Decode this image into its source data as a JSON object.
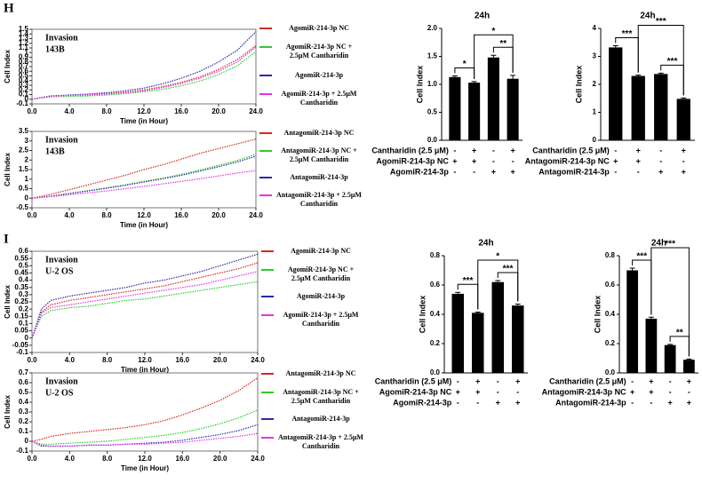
{
  "panel_labels": [
    "H",
    "I"
  ],
  "chart_data": [
    {
      "type": "line",
      "annotations": [
        "Invasion",
        "143B"
      ],
      "x_label": "Time (in Hour)",
      "y_label": "Cell Index",
      "x": [
        0,
        2,
        4,
        6,
        8,
        10,
        12,
        14,
        16,
        18,
        20,
        22,
        24
      ],
      "xlim": [
        0,
        24
      ],
      "xticks": [
        {
          "value": 0,
          "label": "0.0"
        },
        {
          "value": 4,
          "label": "4.0"
        },
        {
          "value": 8,
          "label": "8.0"
        },
        {
          "value": 12,
          "label": "12.0"
        },
        {
          "value": 16,
          "label": "16.0"
        },
        {
          "value": 20,
          "label": "20.0"
        },
        {
          "value": 24,
          "label": "24.0"
        }
      ],
      "ylim": [
        -0.1,
        1.5
      ],
      "yticks": [
        -0.1,
        0,
        0.1,
        0.2,
        0.3,
        0.4,
        0.5,
        0.6,
        0.7,
        0.8,
        0.9,
        1,
        1.1,
        1.2,
        1.3,
        1.4,
        1.5
      ],
      "series": [
        {
          "name": "AgomiR-214-3p NC",
          "color": "#d42a1e",
          "values": [
            0,
            0.07,
            0.08,
            0.1,
            0.12,
            0.15,
            0.2,
            0.27,
            0.36,
            0.48,
            0.64,
            0.85,
            1.15
          ]
        },
        {
          "name": "AgomiR-214-3p NC + 2.5μM Cantharidin",
          "color": "#2ccc2c",
          "values": [
            0,
            0.05,
            0.06,
            0.07,
            0.09,
            0.12,
            0.16,
            0.21,
            0.29,
            0.39,
            0.53,
            0.72,
            1.02
          ]
        },
        {
          "name": "AgomiR-214-3p",
          "color": "#2a2aa8",
          "values": [
            0,
            0.07,
            0.09,
            0.11,
            0.14,
            0.18,
            0.24,
            0.33,
            0.45,
            0.6,
            0.8,
            1.05,
            1.45
          ]
        },
        {
          "name": "AgomiR-214-3p + 2.5μM Cantharidin",
          "color": "#e830e8",
          "values": [
            0,
            0.06,
            0.08,
            0.09,
            0.11,
            0.14,
            0.18,
            0.25,
            0.34,
            0.45,
            0.6,
            0.8,
            1.12
          ]
        }
      ]
    },
    {
      "type": "line",
      "annotations": [
        "Invasion",
        "143B"
      ],
      "x_label": "Time (in Hour)",
      "y_label": "Cell Index",
      "x": [
        0,
        2,
        4,
        6,
        8,
        10,
        12,
        14,
        16,
        18,
        20,
        22,
        24
      ],
      "xlim": [
        0,
        24
      ],
      "xticks": [
        {
          "value": 0,
          "label": "0.0"
        },
        {
          "value": 4,
          "label": "4.0"
        },
        {
          "value": 8,
          "label": "8.0"
        },
        {
          "value": 12,
          "label": "12.0"
        },
        {
          "value": 16,
          "label": "16.0"
        },
        {
          "value": 20,
          "label": "20.0"
        },
        {
          "value": 24,
          "label": "24.0"
        }
      ],
      "ylim": [
        -0.5,
        3.5
      ],
      "yticks": [
        -0.5,
        0,
        0.5,
        1,
        1.5,
        2,
        2.5,
        3,
        3.5
      ],
      "series": [
        {
          "name": "AntagomiR-214-3p NC",
          "color": "#d42a1e",
          "values": [
            0,
            0.2,
            0.45,
            0.7,
            0.95,
            1.2,
            1.5,
            1.75,
            2.05,
            2.35,
            2.6,
            2.85,
            3.1
          ]
        },
        {
          "name": "AntagomiR-214-3p NC + 2.5μM Cantharidin",
          "color": "#2ccc2c",
          "values": [
            0,
            0.1,
            0.25,
            0.4,
            0.55,
            0.7,
            0.88,
            1.05,
            1.25,
            1.48,
            1.72,
            1.98,
            2.3
          ]
        },
        {
          "name": "AntagomiR-214-3p",
          "color": "#2a2aa8",
          "values": [
            0,
            0.1,
            0.25,
            0.38,
            0.52,
            0.68,
            0.85,
            1.02,
            1.2,
            1.42,
            1.65,
            1.9,
            2.2
          ]
        },
        {
          "name": "AntagomiR-214-3p + 2.5μM Cantharidin",
          "color": "#e830e8",
          "values": [
            0,
            0.08,
            0.18,
            0.28,
            0.38,
            0.5,
            0.62,
            0.75,
            0.88,
            1.02,
            1.17,
            1.32,
            1.45
          ]
        }
      ]
    },
    {
      "type": "bar",
      "title": "24h",
      "y_label": "Cell Index",
      "color": "#000000",
      "values": [
        1.13,
        1.03,
        1.48,
        1.1
      ],
      "errors": [
        0.02,
        0.02,
        0.04,
        0.06
      ],
      "ylim": [
        0,
        2
      ],
      "yticks": [
        {
          "value": 0,
          "label": "0.0"
        },
        {
          "value": 0.5,
          "label": "0.5"
        },
        {
          "value": 1,
          "label": "1.0"
        },
        {
          "value": 1.5,
          "label": "1.5"
        },
        {
          "value": 2,
          "label": "2.0"
        }
      ],
      "significance": [
        "*",
        "*",
        "**"
      ],
      "conditions": [
        {
          "label": "Cantharidin (2.5 μM)",
          "signs": [
            "-",
            "+",
            "-",
            "+"
          ]
        },
        {
          "label": "AgomiR-214-3p NC",
          "signs": [
            "+",
            "+",
            "-",
            "-"
          ]
        },
        {
          "label": "AgomiR-214-3p",
          "signs": [
            "-",
            "-",
            "+",
            "+"
          ]
        }
      ]
    },
    {
      "type": "bar",
      "title": "24h",
      "y_label": "Cell Index",
      "color": "#000000",
      "values": [
        3.32,
        2.3,
        2.37,
        1.48
      ],
      "errors": [
        0.06,
        0.03,
        0.03,
        0.03
      ],
      "ylim": [
        0,
        4
      ],
      "yticks": [
        0,
        1,
        2,
        3,
        4
      ],
      "significance": [
        "***",
        "***",
        "***"
      ],
      "conditions": [
        {
          "label": "Cantharidin (2.5 μM)",
          "signs": [
            "-",
            "+",
            "-",
            "+"
          ]
        },
        {
          "label": "AntagomiR-214-3p NC",
          "signs": [
            "+",
            "+",
            "-",
            "-"
          ]
        },
        {
          "label": "AntagomiR-214-3p",
          "signs": [
            "-",
            "-",
            "+",
            "+"
          ]
        }
      ]
    },
    {
      "type": "line",
      "annotations": [
        "Invasion",
        "U-2 OS"
      ],
      "x_label": "Time (in Hour)",
      "y_label": "Cell Index",
      "x": [
        0,
        1,
        2,
        4,
        6,
        8,
        10,
        12,
        14,
        16,
        18,
        20,
        22,
        24
      ],
      "xlim": [
        0,
        24
      ],
      "xticks": [
        {
          "value": 0,
          "label": "0.0"
        },
        {
          "value": 4,
          "label": "4.0"
        },
        {
          "value": 8,
          "label": "8.0"
        },
        {
          "value": 12,
          "label": "12.0"
        },
        {
          "value": 16,
          "label": "16.0"
        },
        {
          "value": 20,
          "label": "20.0"
        },
        {
          "value": 24,
          "label": "24.0"
        }
      ],
      "ylim": [
        -0.1,
        0.6
      ],
      "yticks": [
        -0.1,
        -0.05,
        0,
        0.05,
        0.1,
        0.15,
        0.2,
        0.25,
        0.3,
        0.35,
        0.4,
        0.45,
        0.5,
        0.55,
        0.6
      ],
      "series": [
        {
          "name": "AgomiR-214-3p NC",
          "color": "#d42a1e",
          "values": [
            0,
            0.18,
            0.23,
            0.26,
            0.28,
            0.3,
            0.32,
            0.34,
            0.36,
            0.39,
            0.42,
            0.45,
            0.48,
            0.52
          ]
        },
        {
          "name": "AgomiR-214-3p NC + 2.5μM Cantharidin",
          "color": "#2ccc2c",
          "values": [
            0,
            0.15,
            0.19,
            0.21,
            0.22,
            0.24,
            0.26,
            0.27,
            0.29,
            0.31,
            0.33,
            0.35,
            0.37,
            0.39
          ]
        },
        {
          "name": "AgomiR-214-3p",
          "color": "#2a2aa8",
          "values": [
            0,
            0.2,
            0.26,
            0.29,
            0.31,
            0.33,
            0.35,
            0.38,
            0.4,
            0.43,
            0.46,
            0.5,
            0.54,
            0.58
          ]
        },
        {
          "name": "AgomiR-214-3p + 2.5μM Cantharidin",
          "color": "#e830e8",
          "values": [
            0,
            0.17,
            0.21,
            0.23,
            0.25,
            0.27,
            0.29,
            0.31,
            0.33,
            0.35,
            0.37,
            0.4,
            0.43,
            0.46
          ]
        }
      ]
    },
    {
      "type": "line",
      "annotations": [
        "Invasion",
        "U-2 OS"
      ],
      "x_label": "Time (in Hour)",
      "y_label": "Cell Index",
      "x": [
        0,
        1,
        2,
        4,
        6,
        8,
        10,
        12,
        14,
        16,
        18,
        20,
        22,
        24
      ],
      "xlim": [
        0,
        24
      ],
      "xticks": [
        {
          "value": 0,
          "label": "0.0"
        },
        {
          "value": 4,
          "label": "4.0"
        },
        {
          "value": 8,
          "label": "8.0"
        },
        {
          "value": 12,
          "label": "12.0"
        },
        {
          "value": 16,
          "label": "16.0"
        },
        {
          "value": 20,
          "label": "20.0"
        },
        {
          "value": 24,
          "label": "24.0"
        }
      ],
      "ylim": [
        -0.1,
        0.7
      ],
      "yticks": [
        -0.1,
        0,
        0.1,
        0.2,
        0.3,
        0.4,
        0.5,
        0.6,
        0.7
      ],
      "series": [
        {
          "name": "AntagomiR-214-3p NC",
          "color": "#d42a1e",
          "values": [
            0,
            0.02,
            0.05,
            0.08,
            0.1,
            0.12,
            0.14,
            0.17,
            0.21,
            0.27,
            0.34,
            0.42,
            0.52,
            0.65
          ]
        },
        {
          "name": "AntagomiR-214-3p NC + 2.5μM Cantharidin",
          "color": "#2ccc2c",
          "values": [
            0,
            -0.03,
            -0.03,
            -0.02,
            -0.01,
            0,
            0.02,
            0.04,
            0.06,
            0.09,
            0.13,
            0.18,
            0.24,
            0.32
          ]
        },
        {
          "name": "AntagomiR-214-3p",
          "color": "#2a2aa8",
          "values": [
            0,
            -0.05,
            -0.05,
            -0.05,
            -0.04,
            -0.04,
            -0.03,
            -0.02,
            -0.01,
            0.01,
            0.04,
            0.07,
            0.11,
            0.17
          ]
        },
        {
          "name": "AntagomiR-214-3p + 2.5μM Cantharidin",
          "color": "#e830e8",
          "values": [
            0,
            -0.04,
            -0.05,
            -0.05,
            -0.04,
            -0.04,
            -0.03,
            -0.03,
            -0.02,
            -0.01,
            0.01,
            0.03,
            0.05,
            0.08
          ]
        }
      ]
    },
    {
      "type": "bar",
      "title": "24h",
      "y_label": "Cell Index",
      "color": "#000000",
      "values": [
        0.54,
        0.41,
        0.62,
        0.46
      ],
      "errors": [
        0.01,
        0.005,
        0.01,
        0.01
      ],
      "ylim": [
        0,
        0.8
      ],
      "yticks": [
        {
          "value": 0,
          "label": "0.0"
        },
        0.2,
        0.4,
        0.6,
        0.8
      ],
      "significance": [
        "***",
        "*",
        "***"
      ],
      "conditions": [
        {
          "label": "Cantharidin (2.5 μM)",
          "signs": [
            "-",
            "+",
            "-",
            "+"
          ]
        },
        {
          "label": "AgomiR-214-3p NC",
          "signs": [
            "+",
            "+",
            "-",
            "-"
          ]
        },
        {
          "label": "AgomiR-214-3p",
          "signs": [
            "-",
            "-",
            "+",
            "+"
          ]
        }
      ]
    },
    {
      "type": "bar",
      "title": "24h",
      "y_label": "Cell Index",
      "color": "#000000",
      "values": [
        0.7,
        0.37,
        0.19,
        0.09
      ],
      "errors": [
        0.015,
        0.01,
        0.005,
        0.005
      ],
      "ylim": [
        0,
        0.8
      ],
      "yticks": [
        {
          "value": 0,
          "label": "0.0"
        },
        0.2,
        0.4,
        0.6,
        0.8
      ],
      "significance": [
        "***",
        "***",
        "**"
      ],
      "conditions": [
        {
          "label": "Cantharidin (2.5 μM)",
          "signs": [
            "-",
            "+",
            "-",
            "+"
          ]
        },
        {
          "label": "AntagomiR-214-3p NC",
          "signs": [
            "+",
            "+",
            "-",
            "-"
          ]
        },
        {
          "label": "AntagomiR-214-3p",
          "signs": [
            "-",
            "-",
            "+",
            "+"
          ]
        }
      ]
    }
  ]
}
